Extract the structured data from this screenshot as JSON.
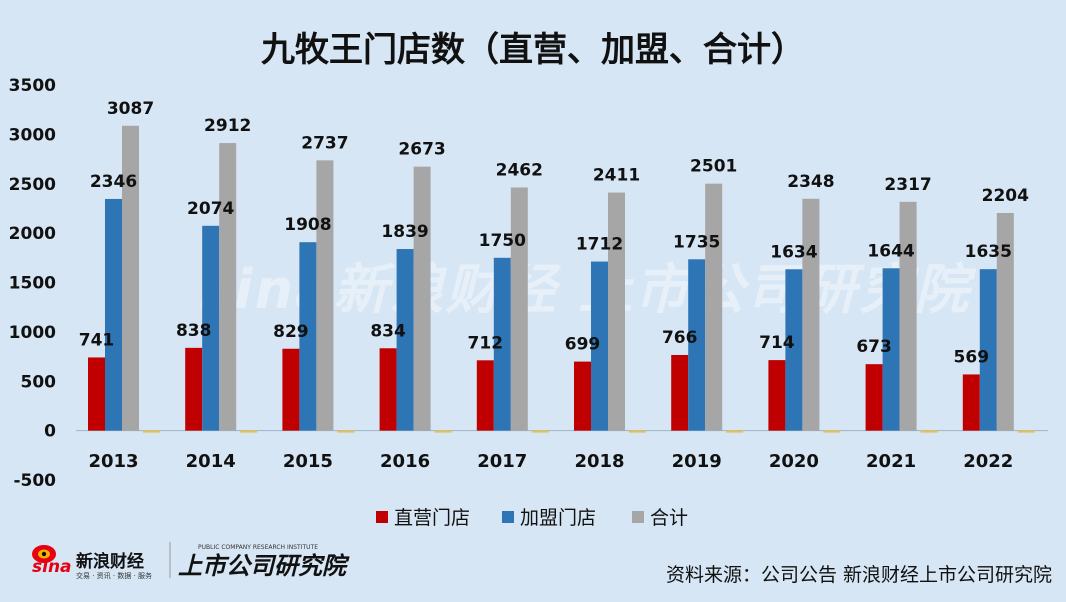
{
  "title": "九牧王门店数（直营、加盟、合计）",
  "source": "资料来源：公司公告 新浪财经上市公司研究院",
  "watermark": "sina新浪财经   上市公司研究院",
  "logo": {
    "sina": "sina",
    "sina_cn": "新浪财经",
    "sina_tagline": "交易 · 资讯 · 数据 · 服务",
    "research": "上市公司研究院",
    "research_en": "PUBLIC COMPANY RESEARCH INSTITUTE"
  },
  "colors": {
    "background": "#d6e6f4",
    "direct": "#c00000",
    "franchise": "#2e75b6",
    "total": "#a6a6a6",
    "zero_series": "#e8c14a"
  },
  "chart_data": {
    "type": "bar",
    "title": "九牧王门店数（直营、加盟、合计）",
    "categories": [
      "2013",
      "2014",
      "2015",
      "2016",
      "2017",
      "2018",
      "2019",
      "2020",
      "2021",
      "2022"
    ],
    "series": [
      {
        "name": "直营门店",
        "values": [
          741,
          838,
          829,
          834,
          712,
          699,
          766,
          714,
          673,
          569
        ]
      },
      {
        "name": "加盟门店",
        "values": [
          2346,
          2074,
          1908,
          1839,
          1750,
          1712,
          1735,
          1634,
          1644,
          1635
        ]
      },
      {
        "name": "合计",
        "values": [
          3087,
          2912,
          2737,
          2673,
          2462,
          2411,
          2501,
          2348,
          2317,
          2204
        ]
      }
    ],
    "yticks": [
      "3500",
      "3000",
      "2500",
      "2000",
      "1500",
      "1000",
      "500",
      "0",
      "-500"
    ],
    "ylim": [
      -500,
      3500
    ],
    "grid": false,
    "legend_position": "bottom"
  }
}
